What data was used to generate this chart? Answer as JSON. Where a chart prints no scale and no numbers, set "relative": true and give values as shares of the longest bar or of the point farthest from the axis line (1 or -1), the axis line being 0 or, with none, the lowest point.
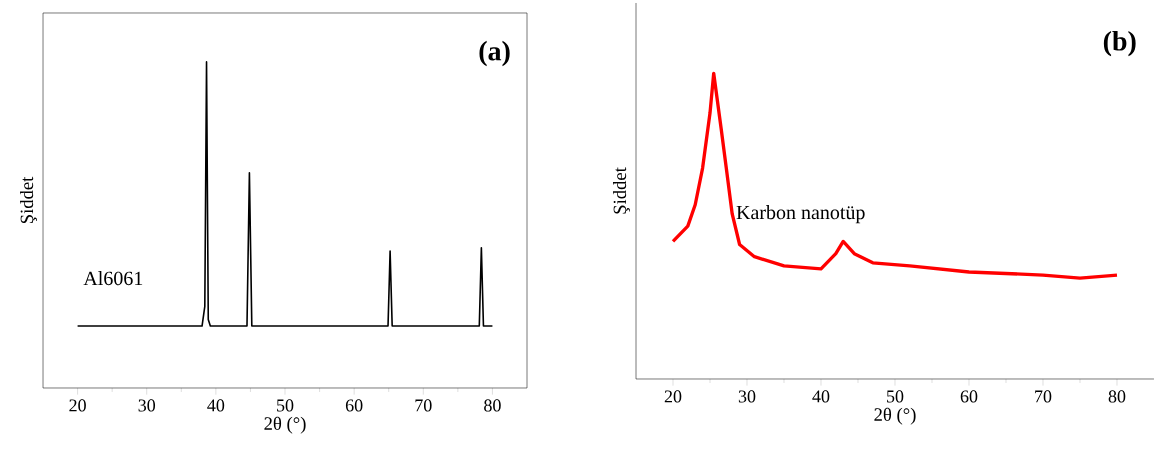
{
  "chart_data": [
    {
      "type": "line",
      "relative": true,
      "color": "#000000",
      "xlim": [
        15,
        85
      ],
      "xticks": [
        20,
        30,
        40,
        50,
        60,
        70,
        80
      ],
      "xlabel": "2θ (°)",
      "ylabel": "Şiddet",
      "annotations": [
        "(a)",
        "Al6061"
      ],
      "x": [
        20,
        38.0,
        38.4,
        38.65,
        38.9,
        39.2,
        44.5,
        44.85,
        45.2,
        64.9,
        65.2,
        65.5,
        78.1,
        78.4,
        78.7,
        80
      ],
      "values": [
        0.19,
        0.19,
        0.25,
        1.0,
        0.21,
        0.19,
        0.19,
        0.66,
        0.19,
        0.19,
        0.42,
        0.19,
        0.19,
        0.43,
        0.19,
        0.19
      ]
    },
    {
      "type": "line",
      "relative": true,
      "color": "#ff0000",
      "xlim": [
        15,
        85
      ],
      "xticks": [
        20,
        30,
        40,
        50,
        60,
        70,
        80
      ],
      "xlabel": "2θ (°)",
      "ylabel": "Şiddet",
      "annotations": [
        "(b)",
        "Karbon nanotüp"
      ],
      "x": [
        20,
        22,
        23,
        24,
        25,
        25.5,
        26.5,
        27.2,
        28,
        29,
        31,
        35,
        40,
        42,
        43,
        44.5,
        47,
        52,
        60,
        70,
        75,
        80
      ],
      "values": [
        0.45,
        0.5,
        0.57,
        0.69,
        0.87,
        1.0,
        0.82,
        0.69,
        0.54,
        0.44,
        0.4,
        0.37,
        0.36,
        0.41,
        0.45,
        0.41,
        0.38,
        0.37,
        0.35,
        0.34,
        0.33,
        0.34
      ]
    }
  ]
}
